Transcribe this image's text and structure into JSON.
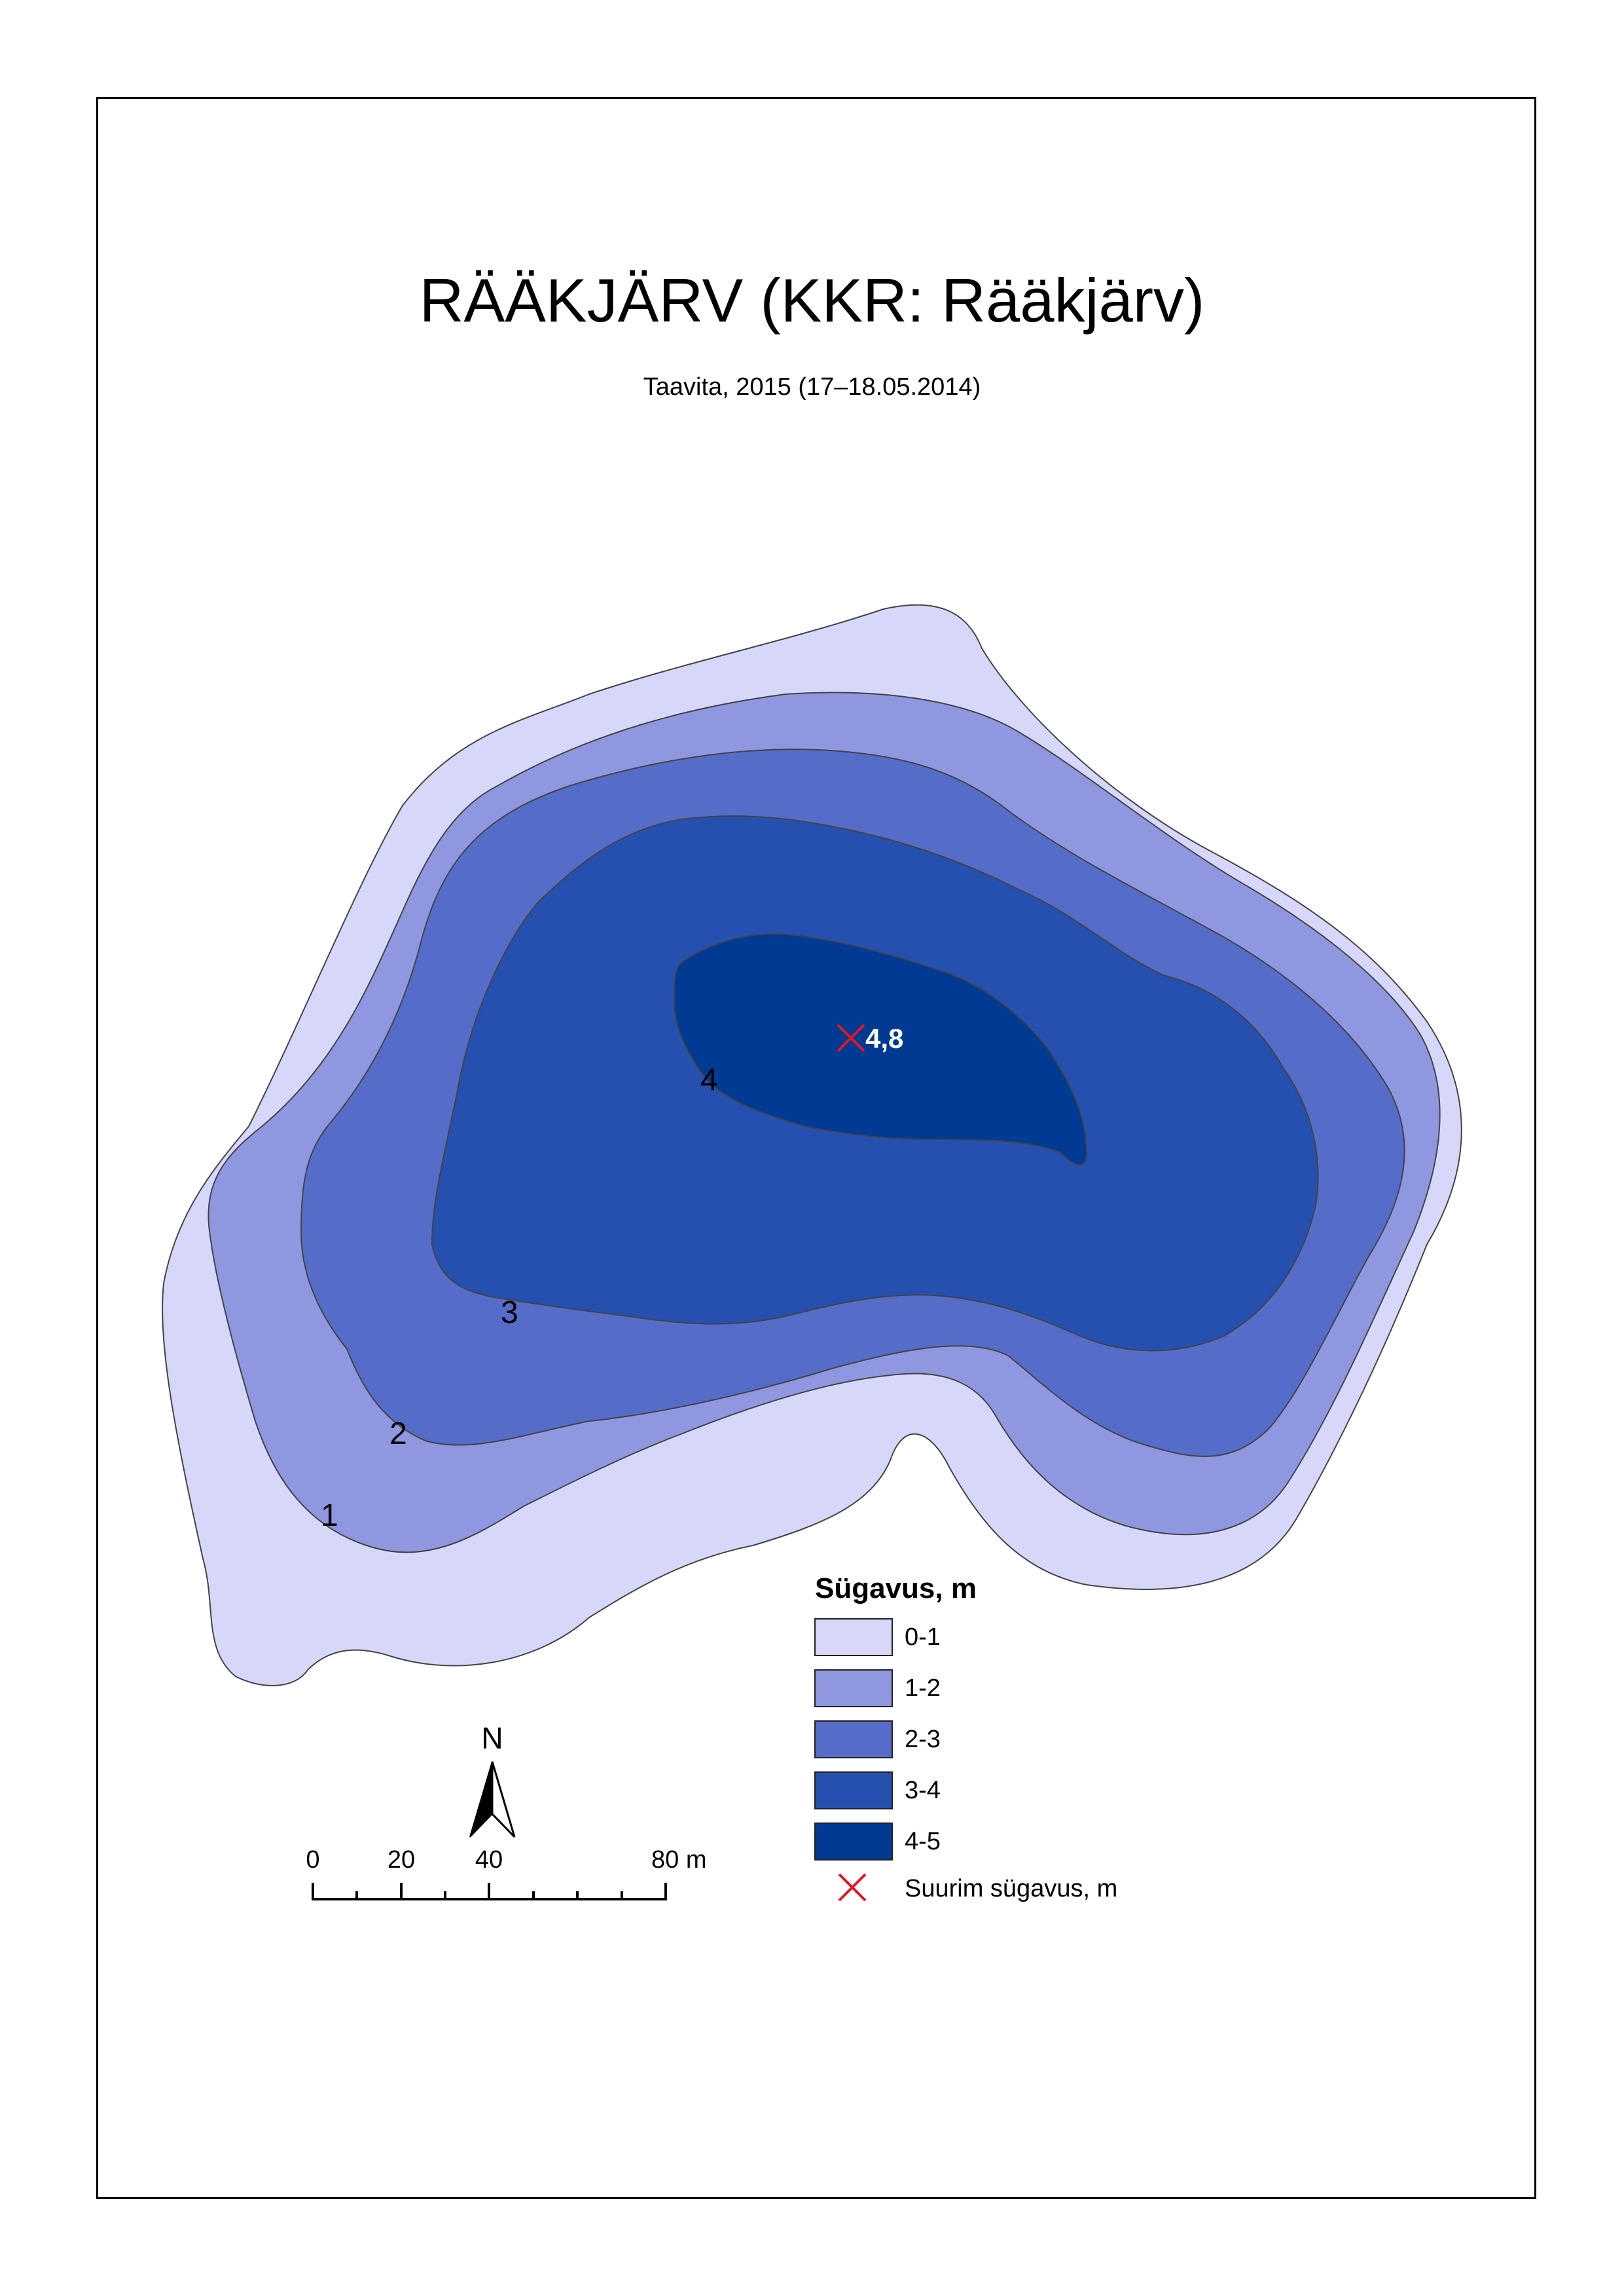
{
  "map": {
    "title": "RÄÄKJÄRV (KKR: Rääkjärv)",
    "subtitle": "Taavita, 2015 (17–18.05.2014)",
    "max_depth_label": "4,8",
    "contour_labels": [
      "1",
      "2",
      "3",
      "4"
    ]
  },
  "legend": {
    "title": "Sügavus, m",
    "classes": [
      {
        "label": "0-1",
        "color": "#d7d7fa"
      },
      {
        "label": "1-2",
        "color": "#8e97e0"
      },
      {
        "label": "2-3",
        "color": "#566cc9"
      },
      {
        "label": "3-4",
        "color": "#2550b0"
      },
      {
        "label": "4-5",
        "color": "#003a93"
      }
    ],
    "max_depth_item": "Suurim sügavus, m",
    "max_depth_color": "#e8141e"
  },
  "north_arrow": {
    "label": "N"
  },
  "scale_bar": {
    "labels": [
      "0",
      "20",
      "40",
      "80 m"
    ]
  }
}
